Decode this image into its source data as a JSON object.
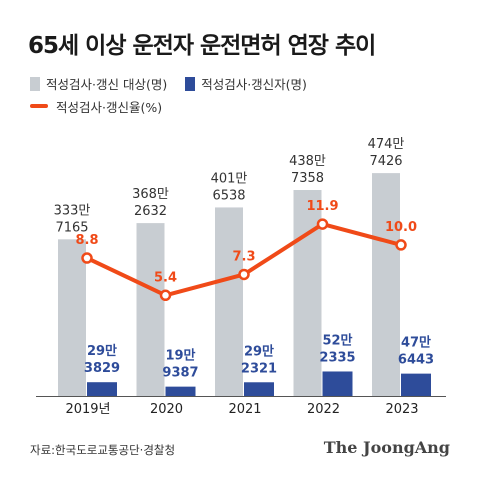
{
  "title": "65세 이상 운전자 운전면허 연장 추이",
  "legend": {
    "targets": "적성검사·갱신 대상(명)",
    "renewals": "적성검사·갱신자(명)",
    "rate": "적성검사·갱신율(%)"
  },
  "colors": {
    "targets": "#c8cdd2",
    "renewals": "#2e4c9a",
    "rate": "#f04a18",
    "rate_label": "#f04a18"
  },
  "footer": {
    "source": "자료:한국도로교통공단·경찰청",
    "brand": "The JoongAng"
  },
  "chart_data": {
    "type": "bar",
    "categories": [
      "2019년",
      "2020",
      "2021",
      "2022",
      "2023"
    ],
    "series": [
      {
        "name": "적성검사·갱신 대상(명)",
        "kind": "bar",
        "values": [
          3337165,
          3682632,
          4016538,
          4387358,
          4747426
        ],
        "labels": [
          [
            "333만",
            "7165"
          ],
          [
            "368만",
            "2632"
          ],
          [
            "401만",
            "6538"
          ],
          [
            "438만",
            "7358"
          ],
          [
            "474만",
            "7426"
          ]
        ]
      },
      {
        "name": "적성검사·갱신자(명)",
        "kind": "bar",
        "values": [
          293829,
          199387,
          292321,
          522335,
          476443
        ],
        "labels": [
          [
            "29만",
            "3829"
          ],
          [
            "19만",
            "9387"
          ],
          [
            "29만",
            "2321"
          ],
          [
            "52만",
            "2335"
          ],
          [
            "47만",
            "6443"
          ]
        ]
      },
      {
        "name": "적성검사·갱신율(%)",
        "kind": "line",
        "values": [
          8.8,
          5.4,
          7.3,
          11.9,
          10.0
        ],
        "labels": [
          "8.8",
          "5.4",
          "7.3",
          "11.9",
          "10.0"
        ]
      }
    ],
    "ylim": [
      0,
      5900000
    ],
    "rate_ylim": [
      -3.8,
      21.5
    ],
    "grid": false,
    "legend_position": "top-left"
  }
}
